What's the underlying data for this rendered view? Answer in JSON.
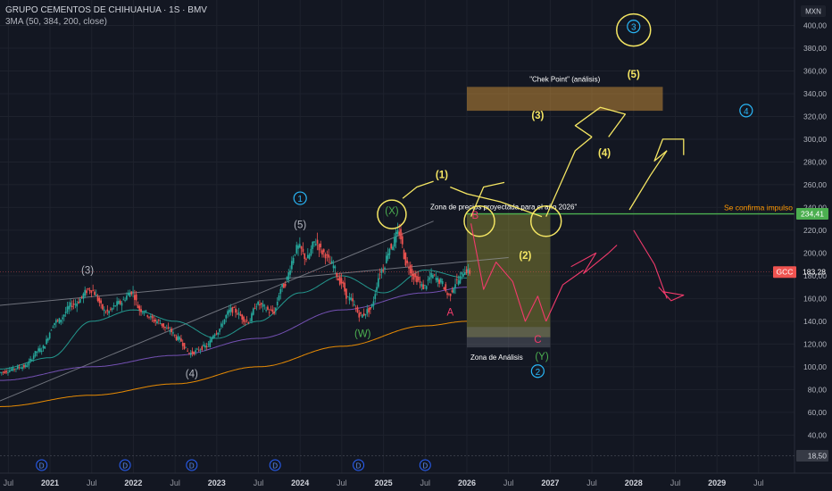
{
  "header": {
    "title": "GRUPO CEMENTOS DE CHIHUAHUA · 1S · BMV",
    "indicator": "3MA (50, 384, 200, close)"
  },
  "currency": "MXN",
  "colors": {
    "background": "#131722",
    "grid": "#1e222d",
    "candle_up": "#26a69a",
    "candle_down": "#ef5350",
    "ma_fast": "#26a69a",
    "ma_slow": "#7e57c2",
    "ma_long": "#ff9800",
    "impulse_line": "#4caf50",
    "annotation_yellow": "#f5e663",
    "annotation_pink": "#f23a6b",
    "annotation_cyan": "#29b6f6"
  },
  "chart_data": {
    "type": "candlestick",
    "symbol": "GCC",
    "x_axis": {
      "tick_labels": [
        "Jul",
        "2021",
        "Jul",
        "2022",
        "Jul",
        "2023",
        "Jul",
        "2024",
        "Jul",
        "2025",
        "Jul",
        "2026",
        "Jul",
        "2027",
        "Jul",
        "2028",
        "Jul",
        "2029",
        "Jul"
      ],
      "range": [
        "2020-05",
        "2029-12"
      ]
    },
    "y_axis": {
      "tick_labels": [
        "400,00",
        "380,00",
        "360,00",
        "340,00",
        "320,00",
        "300,00",
        "280,00",
        "260,00",
        "240,00",
        "220,00",
        "200,00",
        "180,00",
        "160,00",
        "140,00",
        "120,00",
        "100,00",
        "80,00",
        "60,00",
        "40,00",
        "18,50"
      ],
      "ticks": [
        400,
        380,
        360,
        340,
        320,
        300,
        280,
        260,
        240,
        220,
        200,
        180,
        160,
        140,
        120,
        100,
        80,
        60,
        40
      ],
      "range": [
        12,
        412
      ]
    },
    "price_labels": [
      {
        "label": "234,41",
        "value": 234.41,
        "color": "#4caf50"
      },
      {
        "label": "GCC",
        "price": "183,28",
        "value": 183.28,
        "color": "#ef5350"
      },
      {
        "label": "18,50",
        "value": 18.5,
        "color": "#363a45"
      }
    ],
    "price_path": [
      [
        2020.4,
        95
      ],
      [
        2020.7,
        100
      ],
      [
        2020.9,
        115
      ],
      [
        2021.1,
        140
      ],
      [
        2021.3,
        155
      ],
      [
        2021.5,
        168
      ],
      [
        2021.7,
        148
      ],
      [
        2021.85,
        156
      ],
      [
        2022.0,
        166
      ],
      [
        2022.1,
        150
      ],
      [
        2022.3,
        140
      ],
      [
        2022.45,
        132
      ],
      [
        2022.55,
        125
      ],
      [
        2022.7,
        112
      ],
      [
        2022.9,
        118
      ],
      [
        2023.0,
        130
      ],
      [
        2023.2,
        150
      ],
      [
        2023.4,
        140
      ],
      [
        2023.5,
        155
      ],
      [
        2023.7,
        148
      ],
      [
        2023.8,
        170
      ],
      [
        2024.0,
        205
      ],
      [
        2024.1,
        195
      ],
      [
        2024.2,
        210
      ],
      [
        2024.3,
        200
      ],
      [
        2024.4,
        190
      ],
      [
        2024.5,
        175
      ],
      [
        2024.6,
        160
      ],
      [
        2024.75,
        145
      ],
      [
        2024.85,
        150
      ],
      [
        2025.0,
        185
      ],
      [
        2025.1,
        205
      ],
      [
        2025.2,
        218
      ],
      [
        2025.3,
        190
      ],
      [
        2025.4,
        178
      ],
      [
        2025.5,
        170
      ],
      [
        2025.6,
        180
      ],
      [
        2025.7,
        175
      ],
      [
        2025.8,
        163
      ],
      [
        2025.9,
        175
      ],
      [
        2026.0,
        185
      ],
      [
        2026.05,
        183
      ]
    ],
    "moving_averages": [
      {
        "period": 50,
        "color": "#26a69a",
        "points": [
          [
            2020.4,
            98
          ],
          [
            2021.0,
            108
          ],
          [
            2021.5,
            140
          ],
          [
            2022.0,
            150
          ],
          [
            2022.5,
            140
          ],
          [
            2023.0,
            125
          ],
          [
            2023.5,
            140
          ],
          [
            2024.0,
            165
          ],
          [
            2024.5,
            180
          ],
          [
            2025.0,
            165
          ],
          [
            2025.5,
            185
          ],
          [
            2026.0,
            178
          ]
        ]
      },
      {
        "period": 384,
        "color": "#ff9800",
        "points": [
          [
            2020.4,
            65
          ],
          [
            2021.5,
            75
          ],
          [
            2022.5,
            85
          ],
          [
            2023.5,
            100
          ],
          [
            2024.5,
            118
          ],
          [
            2025.5,
            136
          ],
          [
            2026.0,
            140
          ]
        ]
      },
      {
        "period": 200,
        "color": "#7e57c2",
        "points": [
          [
            2020.4,
            88
          ],
          [
            2021.5,
            100
          ],
          [
            2022.5,
            110
          ],
          [
            2023.5,
            125
          ],
          [
            2024.5,
            150
          ],
          [
            2025.5,
            165
          ],
          [
            2026.0,
            170
          ]
        ]
      }
    ],
    "trendlines": [
      {
        "from": [
          2020.4,
          70
        ],
        "to": [
          2025.6,
          228
        ]
      },
      {
        "from": [
          2020.4,
          154
        ],
        "to": [
          2026.5,
          196
        ]
      }
    ],
    "horizontal_lines": [
      {
        "value": 234.41,
        "from": 2026.0,
        "label": "Se confirma impulso"
      }
    ],
    "zones": [
      {
        "label": "\"Chek Point\" (análisis)",
        "from": 2026.0,
        "to": 2028.35,
        "y": [
          325,
          346
        ],
        "color": "#e6a23c"
      },
      {
        "label": "Zona de precios proyectada para el año 2026\"",
        "from": 2026.0,
        "to": 2027.0,
        "y": [
          126,
          235
        ],
        "color": "#bdb63a"
      },
      {
        "label": "Zona de Análisis",
        "from": 2026.0,
        "to": 2027.0,
        "y": [
          117,
          135
        ],
        "color": "#787b86"
      }
    ],
    "wave_labels": [
      {
        "text": "(3)",
        "x": 2021.45,
        "y": 182,
        "color": "#b2b5be"
      },
      {
        "text": "(4)",
        "x": 2022.7,
        "y": 91,
        "color": "#b2b5be"
      },
      {
        "text": "(5)",
        "x": 2024.0,
        "y": 222,
        "color": "#b2b5be"
      },
      {
        "text": "1",
        "x": 2024.0,
        "y": 245,
        "color": "#29b6f6",
        "circled": true
      },
      {
        "text": "(W)",
        "x": 2024.75,
        "y": 126,
        "color": "#4caf50"
      },
      {
        "text": "(X)",
        "x": 2025.1,
        "y": 234,
        "color": "#4caf50"
      },
      {
        "text": "A",
        "x": 2025.8,
        "y": 145,
        "color": "#f23a6b"
      },
      {
        "text": "B",
        "x": 2026.1,
        "y": 230,
        "color": "#f23a6b"
      },
      {
        "text": "C",
        "x": 2026.85,
        "y": 121,
        "color": "#f23a6b"
      },
      {
        "text": "(Y)",
        "x": 2026.9,
        "y": 106,
        "color": "#4caf50"
      },
      {
        "text": "2",
        "x": 2026.85,
        "y": 93,
        "color": "#29b6f6",
        "circled": true
      },
      {
        "text": "(1)",
        "x": 2025.7,
        "y": 266,
        "color": "#f5e663"
      },
      {
        "text": "(2)",
        "x": 2026.7,
        "y": 195,
        "color": "#f5e663"
      },
      {
        "text": "(3)",
        "x": 2026.85,
        "y": 318,
        "color": "#f5e663"
      },
      {
        "text": "(4)",
        "x": 2027.65,
        "y": 285,
        "color": "#f5e663"
      },
      {
        "text": "(5)",
        "x": 2028.0,
        "y": 354,
        "color": "#f5e663"
      },
      {
        "text": "3",
        "x": 2028.0,
        "y": 396,
        "color": "#29b6f6",
        "circled": true
      },
      {
        "text": "4",
        "x": 2029.35,
        "y": 322,
        "color": "#29b6f6",
        "circled": true
      }
    ],
    "event_markers": {
      "label": "D",
      "x": [
        2020.9,
        2021.9,
        2022.7,
        2023.7,
        2024.7,
        2025.5
      ]
    },
    "grid": true,
    "legend": "none"
  }
}
